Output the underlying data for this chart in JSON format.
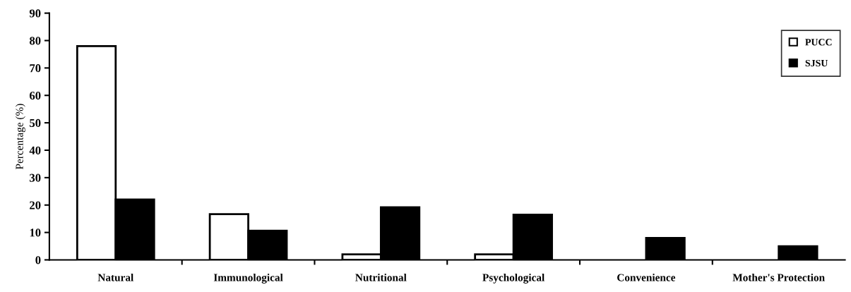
{
  "chart_data": {
    "type": "bar",
    "ylabel": "Percentage (%)",
    "categories": [
      "Natural",
      "Immunological",
      "Nutritional",
      "Psychological",
      "Convenience",
      "Mother's Protection"
    ],
    "series": [
      {
        "name": "PUCC",
        "color": "#ffffff",
        "values": [
          78,
          16.7,
          2,
          2,
          0,
          0
        ]
      },
      {
        "name": "SJSU",
        "color": "#000000",
        "values": [
          22,
          10.6,
          19.2,
          16.5,
          8,
          5
        ]
      }
    ],
    "ylim": [
      0,
      90
    ],
    "yticks": [
      0,
      10,
      20,
      30,
      40,
      50,
      60,
      70,
      80,
      90
    ],
    "grid": false,
    "legend": "top right"
  }
}
